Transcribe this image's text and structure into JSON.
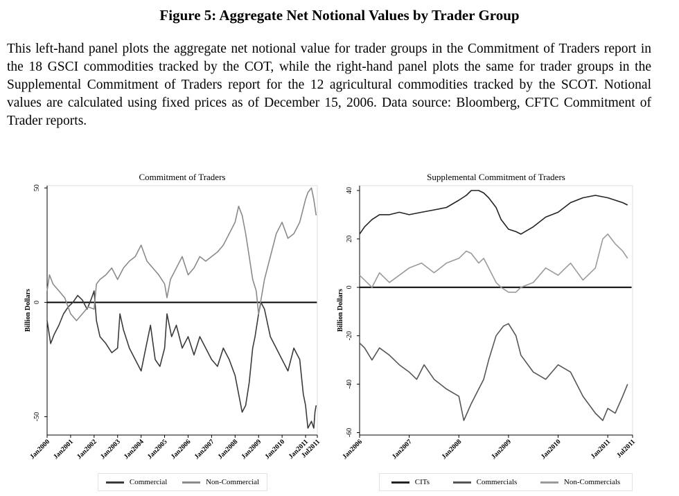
{
  "figure": {
    "title": "Figure 5: Aggregate Net Notional Values by Trader Group",
    "caption": "This left-hand panel plots the aggregate net notional value for trader groups in the Commitment of Traders report in the 18 GSCI commodities tracked by the COT, while the right-hand panel plots the same for trader groups in the Supplemental Commitment of Traders report for the 12 agricultural commodities tracked by the SCOT.  Notional values are calculated using fixed prices as of December 15, 2006.  Data source: Bloomberg, CFTC Commitment of Trader reports."
  },
  "chart_data": [
    {
      "type": "line",
      "title": "Commitment of Traders",
      "xlabel": "",
      "ylabel": "Billion Dollars",
      "xlim": [
        2000.0,
        2011.5
      ],
      "ylim": [
        -58,
        51
      ],
      "yticks": [
        -50,
        0,
        50
      ],
      "xticks": [
        {
          "x": 2000.0,
          "label": "Jan2000"
        },
        {
          "x": 2001.0,
          "label": "Jan2001"
        },
        {
          "x": 2002.0,
          "label": "Jan2002"
        },
        {
          "x": 2003.0,
          "label": "Jan2003"
        },
        {
          "x": 2004.0,
          "label": "Jan2004"
        },
        {
          "x": 2005.0,
          "label": "Jan2005"
        },
        {
          "x": 2006.0,
          "label": "Jan2006"
        },
        {
          "x": 2007.0,
          "label": "Jan2007"
        },
        {
          "x": 2008.0,
          "label": "Jan2008"
        },
        {
          "x": 2009.0,
          "label": "Jan2009"
        },
        {
          "x": 2010.0,
          "label": "Jan2010"
        },
        {
          "x": 2011.0,
          "label": "Jan2011"
        },
        {
          "x": 2011.5,
          "label": "Jul2011"
        }
      ],
      "zero_line": true,
      "legend_position": "bottom",
      "series": [
        {
          "name": "Commercial",
          "color": "#3a3a3a",
          "x": [
            2000.0,
            2000.15,
            2000.3,
            2000.5,
            2000.7,
            2000.9,
            2001.1,
            2001.3,
            2001.5,
            2001.7,
            2001.9,
            2002.0,
            2002.1,
            2002.25,
            2002.5,
            2002.75,
            2003.0,
            2003.1,
            2003.25,
            2003.5,
            2003.75,
            2004.0,
            2004.2,
            2004.4,
            2004.6,
            2004.8,
            2005.0,
            2005.1,
            2005.3,
            2005.5,
            2005.75,
            2006.0,
            2006.25,
            2006.5,
            2006.75,
            2007.0,
            2007.25,
            2007.5,
            2007.75,
            2008.0,
            2008.15,
            2008.3,
            2008.45,
            2008.6,
            2008.75,
            2008.85,
            2009.0,
            2009.1,
            2009.25,
            2009.5,
            2009.75,
            2010.0,
            2010.25,
            2010.5,
            2010.75,
            2010.9,
            2011.0,
            2011.1,
            2011.25,
            2011.35,
            2011.4,
            2011.45
          ],
          "y": [
            -8,
            -18,
            -14,
            -10,
            -5,
            -2,
            0,
            3,
            1,
            -3,
            2,
            5,
            -8,
            -15,
            -18,
            -22,
            -20,
            -5,
            -12,
            -20,
            -25,
            -30,
            -20,
            -10,
            -25,
            -28,
            -20,
            -5,
            -15,
            -10,
            -20,
            -15,
            -23,
            -15,
            -20,
            -25,
            -28,
            -20,
            -25,
            -32,
            -40,
            -48,
            -45,
            -35,
            -20,
            -15,
            -5,
            0,
            -3,
            -15,
            -20,
            -25,
            -30,
            -20,
            -25,
            -40,
            -45,
            -55,
            -52,
            -55,
            -48,
            -45
          ]
        },
        {
          "name": "Non-Commercial",
          "color": "#8a8a8a",
          "x": [
            2000.0,
            2000.1,
            2000.25,
            2000.5,
            2000.75,
            2001.0,
            2001.25,
            2001.5,
            2001.75,
            2002.0,
            2002.1,
            2002.25,
            2002.5,
            2002.75,
            2003.0,
            2003.25,
            2003.5,
            2003.75,
            2004.0,
            2004.25,
            2004.5,
            2004.75,
            2005.0,
            2005.1,
            2005.25,
            2005.5,
            2005.75,
            2006.0,
            2006.25,
            2006.5,
            2006.75,
            2007.0,
            2007.25,
            2007.5,
            2007.75,
            2008.0,
            2008.15,
            2008.3,
            2008.45,
            2008.6,
            2008.75,
            2008.9,
            2009.0,
            2009.25,
            2009.5,
            2009.75,
            2010.0,
            2010.25,
            2010.5,
            2010.75,
            2011.0,
            2011.1,
            2011.25,
            2011.35,
            2011.45
          ],
          "y": [
            5,
            12,
            8,
            5,
            2,
            -5,
            -8,
            -5,
            -2,
            -3,
            8,
            10,
            12,
            15,
            10,
            15,
            18,
            20,
            25,
            18,
            15,
            12,
            8,
            2,
            10,
            15,
            20,
            12,
            15,
            20,
            18,
            20,
            22,
            25,
            30,
            35,
            42,
            38,
            30,
            20,
            10,
            5,
            -5,
            10,
            20,
            30,
            35,
            28,
            30,
            35,
            45,
            48,
            50,
            45,
            38
          ]
        }
      ]
    },
    {
      "type": "line",
      "title": "Supplemental Commitment of Traders",
      "xlabel": "",
      "ylabel": "Billion Dollars",
      "xlim": [
        2006.0,
        2011.5
      ],
      "ylim": [
        -61,
        42
      ],
      "yticks": [
        -60,
        -40,
        -20,
        0,
        20,
        40
      ],
      "xticks": [
        {
          "x": 2006.0,
          "label": "Jan2006"
        },
        {
          "x": 2007.0,
          "label": "Jan2007"
        },
        {
          "x": 2008.0,
          "label": "Jan2008"
        },
        {
          "x": 2009.0,
          "label": "Jan2009"
        },
        {
          "x": 2010.0,
          "label": "Jan2010"
        },
        {
          "x": 2011.0,
          "label": "Jan2011"
        },
        {
          "x": 2011.5,
          "label": "Jul2011"
        }
      ],
      "zero_line": true,
      "legend_position": "bottom",
      "series": [
        {
          "name": "CITs",
          "color": "#222222",
          "x": [
            2006.0,
            2006.1,
            2006.25,
            2006.4,
            2006.6,
            2006.8,
            2007.0,
            2007.25,
            2007.5,
            2007.75,
            2008.0,
            2008.15,
            2008.25,
            2008.4,
            2008.5,
            2008.6,
            2008.75,
            2008.85,
            2009.0,
            2009.15,
            2009.25,
            2009.5,
            2009.75,
            2010.0,
            2010.25,
            2010.5,
            2010.75,
            2011.0,
            2011.15,
            2011.3,
            2011.4
          ],
          "y": [
            22,
            25,
            28,
            30,
            30,
            31,
            30,
            31,
            32,
            33,
            36,
            38,
            40,
            40,
            39,
            37,
            33,
            28,
            24,
            23,
            22,
            25,
            29,
            31,
            35,
            37,
            38,
            37,
            36,
            35,
            34
          ]
        },
        {
          "name": "Commercials",
          "color": "#555555",
          "x": [
            2006.0,
            2006.1,
            2006.25,
            2006.4,
            2006.6,
            2006.8,
            2007.0,
            2007.15,
            2007.3,
            2007.5,
            2007.75,
            2008.0,
            2008.1,
            2008.25,
            2008.4,
            2008.5,
            2008.6,
            2008.75,
            2008.9,
            2009.0,
            2009.15,
            2009.25,
            2009.5,
            2009.75,
            2010.0,
            2010.25,
            2010.5,
            2010.75,
            2010.9,
            2011.0,
            2011.15,
            2011.3,
            2011.4
          ],
          "y": [
            -23,
            -25,
            -30,
            -25,
            -28,
            -32,
            -35,
            -38,
            -32,
            -38,
            -42,
            -45,
            -55,
            -48,
            -42,
            -38,
            -30,
            -20,
            -16,
            -15,
            -20,
            -28,
            -35,
            -38,
            -32,
            -35,
            -45,
            -52,
            -55,
            -50,
            -52,
            -45,
            -40
          ]
        },
        {
          "name": "Non-Commercials",
          "color": "#9a9a9a",
          "x": [
            2006.0,
            2006.1,
            2006.25,
            2006.4,
            2006.6,
            2006.8,
            2007.0,
            2007.25,
            2007.5,
            2007.75,
            2008.0,
            2008.15,
            2008.25,
            2008.4,
            2008.5,
            2008.6,
            2008.75,
            2008.85,
            2009.0,
            2009.15,
            2009.25,
            2009.5,
            2009.75,
            2010.0,
            2010.25,
            2010.5,
            2010.75,
            2010.9,
            2011.0,
            2011.15,
            2011.3,
            2011.4
          ],
          "y": [
            5,
            3,
            0,
            6,
            2,
            5,
            8,
            10,
            6,
            10,
            12,
            15,
            14,
            10,
            12,
            8,
            2,
            0,
            -2,
            -2,
            0,
            2,
            8,
            5,
            10,
            3,
            8,
            20,
            22,
            18,
            15,
            12
          ]
        }
      ]
    }
  ]
}
